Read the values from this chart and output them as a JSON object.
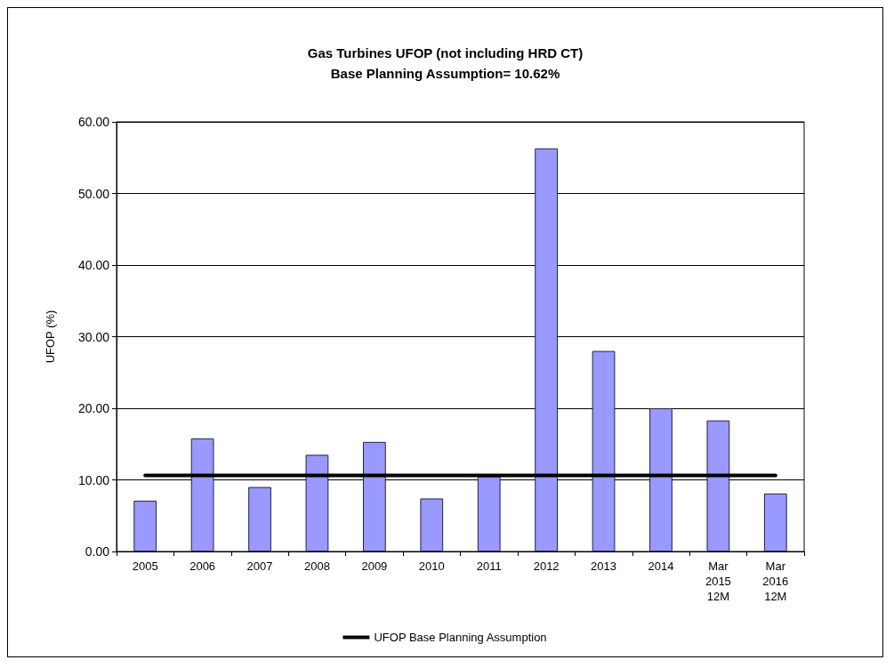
{
  "chart_data": {
    "type": "bar",
    "title": "Gas Turbines UFOP (not including HRD CT)",
    "subtitle": "Base Planning Assumption= 10.62%",
    "ylabel": "UFOP (%)",
    "categories": [
      "2005",
      "2006",
      "2007",
      "2008",
      "2009",
      "2010",
      "2011",
      "2012",
      "2013",
      "2014",
      "Mar\n2015\n12M",
      "Mar\n2016\n12M"
    ],
    "series": [
      {
        "color": "#9999ff",
        "values": [
          7.1,
          15.8,
          9.0,
          13.5,
          15.3,
          7.4,
          10.5,
          56.3,
          28.0,
          20.0,
          18.3,
          8.1
        ]
      },
      {
        "type": "line",
        "name": "UFOP Base Planning Assumption",
        "color": "#000000",
        "values": [
          10.62,
          10.62,
          10.62,
          10.62,
          10.62,
          10.62,
          10.62,
          10.62,
          10.62,
          10.62,
          10.62,
          10.62
        ]
      }
    ],
    "ylim": [
      0,
      60
    ],
    "yticks": [
      {
        "value": 0,
        "label": "0.00"
      },
      {
        "value": 10,
        "label": "10.00"
      },
      {
        "value": 20,
        "label": "20.00"
      },
      {
        "value": 30,
        "label": "30.00"
      },
      {
        "value": 40,
        "label": "40.00"
      },
      {
        "value": 50,
        "label": "50.00"
      },
      {
        "value": 60,
        "label": "60.00"
      }
    ],
    "grid": "y",
    "legend": "bottom",
    "marker": "none",
    "line_style": "solid"
  }
}
